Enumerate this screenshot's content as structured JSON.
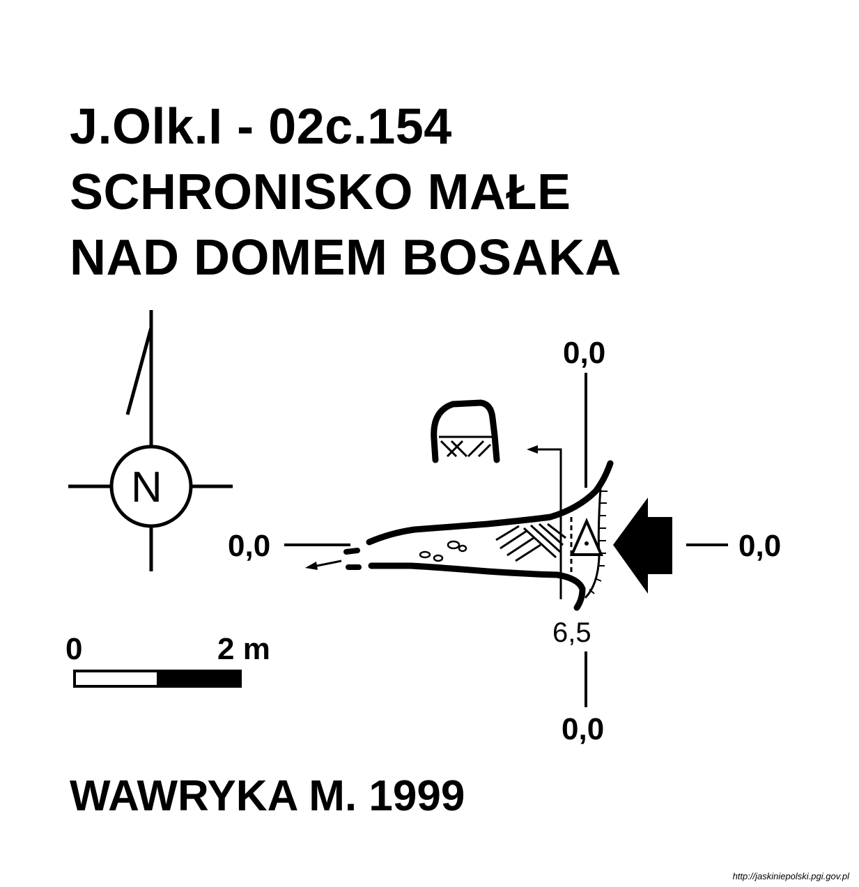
{
  "title": {
    "line1": "J.Olk.I - 02c.154",
    "line2": "SCHRONISKO MAŁE",
    "line3": "NAD DOMEM BOSAKA"
  },
  "compass": {
    "letter": "N"
  },
  "scale_bar": {
    "start_label": "0",
    "end_label": "2 m"
  },
  "section_labels": {
    "top": "0,0",
    "left": "0,0",
    "right": "0,0",
    "bottom": "0,0",
    "depth": "6,5"
  },
  "author": "WAWRYKA M. 1999",
  "source_url": "http://jaskiniepolski.pgi.gov.pl",
  "colors": {
    "ink": "#000000",
    "paper": "#ffffff"
  }
}
